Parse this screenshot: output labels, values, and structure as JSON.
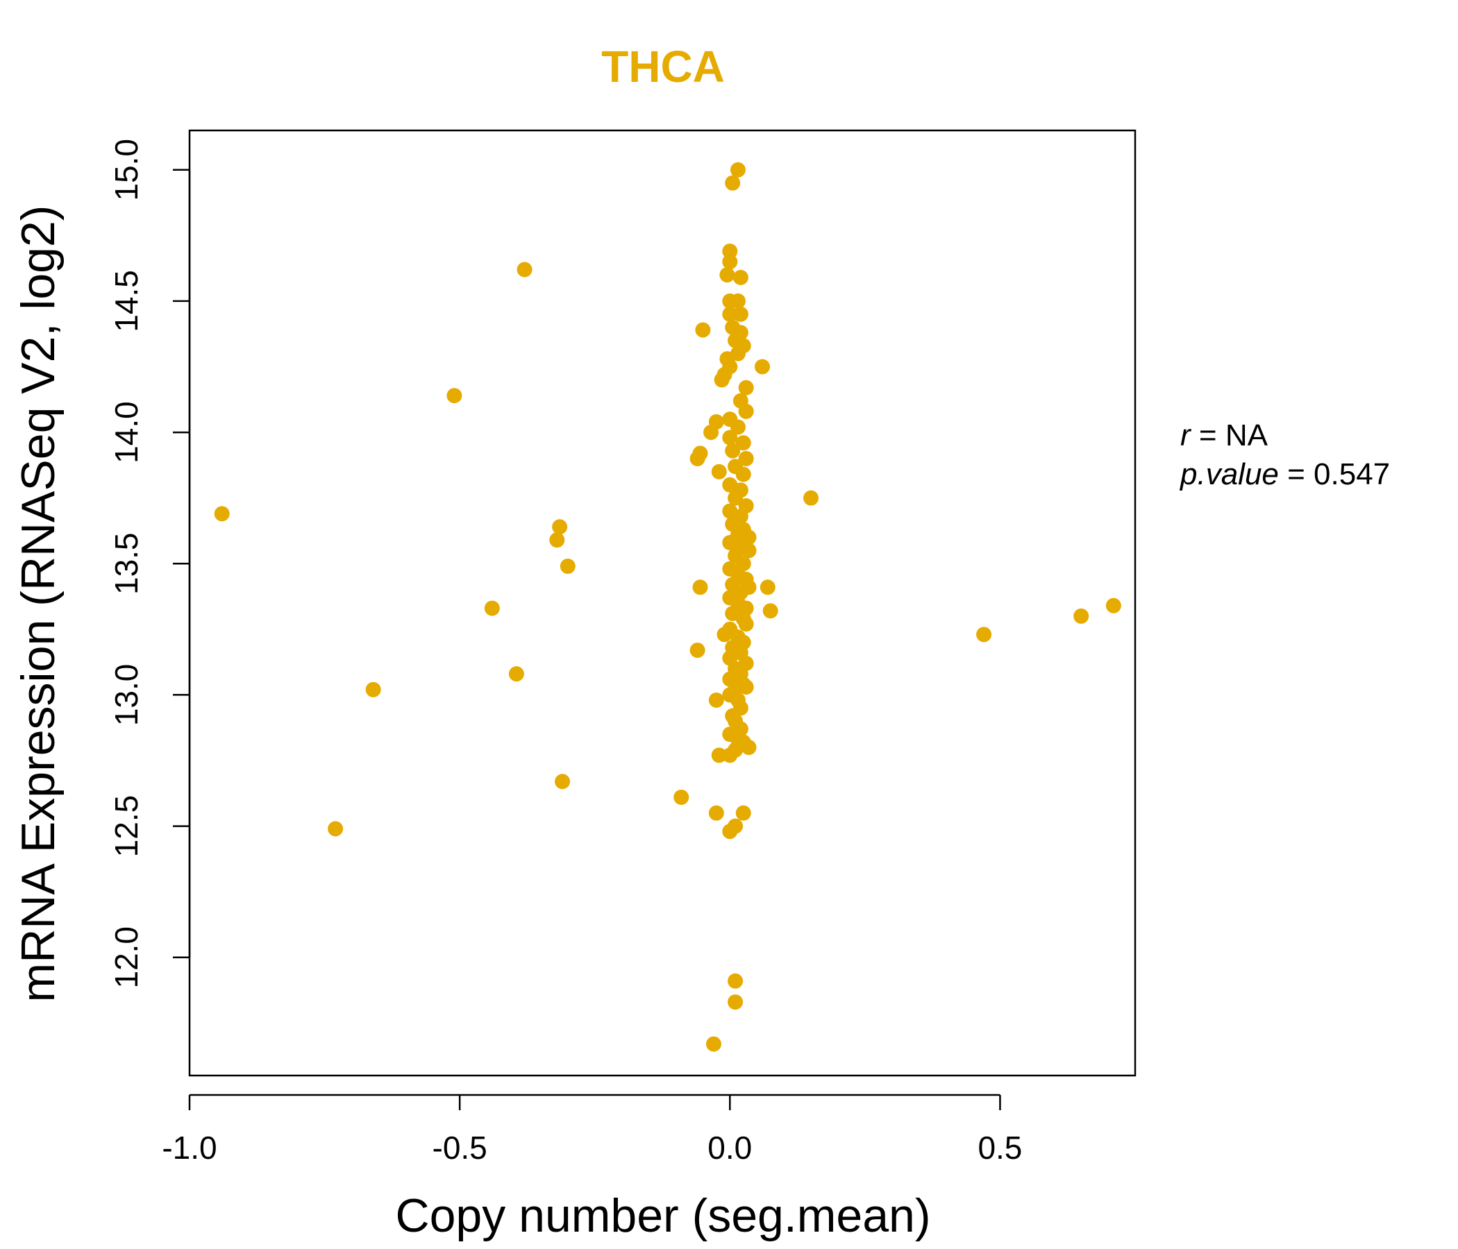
{
  "chart_data": {
    "type": "scatter",
    "title": "THCA",
    "xlabel": "Copy number (seg.mean)",
    "ylabel": "mRNA Expression (RNASeq V2, log2)",
    "xlim": [
      -1.0,
      0.75
    ],
    "ylim": [
      11.55,
      15.15
    ],
    "x_ticks": [
      "-1.0",
      "-0.5",
      "0.0",
      "0.5"
    ],
    "x_tick_values": [
      -1.0,
      -0.5,
      0.0,
      0.5
    ],
    "y_ticks": [
      "12.0",
      "12.5",
      "13.0",
      "13.5",
      "14.0",
      "14.5",
      "15.0"
    ],
    "y_tick_values": [
      12.0,
      12.5,
      13.0,
      13.5,
      14.0,
      14.5,
      15.0
    ],
    "grid": false,
    "color": "#E5AB00",
    "stats": {
      "r_label": "r",
      "r_value": "NA",
      "p_label": "p.value",
      "p_value": "0.547"
    },
    "points": [
      [
        -0.94,
        13.69
      ],
      [
        -0.73,
        12.49
      ],
      [
        -0.66,
        13.02
      ],
      [
        -0.51,
        14.14
      ],
      [
        -0.44,
        13.33
      ],
      [
        -0.395,
        13.08
      ],
      [
        -0.38,
        14.62
      ],
      [
        -0.315,
        13.64
      ],
      [
        -0.32,
        13.59
      ],
      [
        -0.3,
        13.49
      ],
      [
        -0.31,
        12.67
      ],
      [
        -0.09,
        12.61
      ],
      [
        -0.055,
        13.41
      ],
      [
        -0.06,
        13.17
      ],
      [
        -0.055,
        13.92
      ],
      [
        -0.06,
        13.9
      ],
      [
        -0.05,
        14.39
      ],
      [
        -0.035,
        14.0
      ],
      [
        -0.025,
        14.04
      ],
      [
        -0.025,
        12.55
      ],
      [
        -0.025,
        12.98
      ],
      [
        -0.02,
        12.77
      ],
      [
        -0.03,
        11.67
      ],
      [
        -0.02,
        13.85
      ],
      [
        -0.015,
        14.2
      ],
      [
        -0.01,
        14.22
      ],
      [
        -0.005,
        14.28
      ],
      [
        -0.01,
        13.23
      ],
      [
        0.0,
        12.77
      ],
      [
        0.0,
        12.48
      ],
      [
        0.01,
        12.5
      ],
      [
        0.025,
        12.55
      ],
      [
        0.01,
        11.91
      ],
      [
        0.01,
        11.83
      ],
      [
        0.015,
        15.0
      ],
      [
        0.005,
        14.95
      ],
      [
        0.0,
        14.69
      ],
      [
        0.0,
        14.65
      ],
      [
        -0.005,
        14.6
      ],
      [
        0.02,
        14.59
      ],
      [
        0.0,
        14.5
      ],
      [
        0.015,
        14.5
      ],
      [
        0.0,
        14.45
      ],
      [
        0.02,
        14.45
      ],
      [
        0.005,
        14.4
      ],
      [
        0.02,
        14.38
      ],
      [
        0.01,
        14.35
      ],
      [
        0.025,
        14.33
      ],
      [
        0.015,
        14.3
      ],
      [
        0.0,
        14.25
      ],
      [
        0.03,
        14.17
      ],
      [
        0.02,
        14.12
      ],
      [
        0.03,
        14.08
      ],
      [
        0.0,
        14.05
      ],
      [
        0.015,
        14.02
      ],
      [
        0.0,
        13.98
      ],
      [
        0.025,
        13.96
      ],
      [
        0.005,
        13.93
      ],
      [
        0.03,
        13.9
      ],
      [
        0.01,
        13.87
      ],
      [
        0.025,
        13.84
      ],
      [
        0.0,
        13.8
      ],
      [
        0.02,
        13.78
      ],
      [
        0.01,
        13.75
      ],
      [
        0.03,
        13.72
      ],
      [
        0.0,
        13.7
      ],
      [
        0.02,
        13.68
      ],
      [
        0.005,
        13.65
      ],
      [
        0.025,
        13.63
      ],
      [
        0.015,
        13.61
      ],
      [
        0.035,
        13.6
      ],
      [
        0.0,
        13.58
      ],
      [
        0.02,
        13.56
      ],
      [
        0.035,
        13.55
      ],
      [
        0.01,
        13.53
      ],
      [
        0.025,
        13.5
      ],
      [
        0.0,
        13.48
      ],
      [
        0.015,
        13.46
      ],
      [
        0.03,
        13.44
      ],
      [
        0.005,
        13.42
      ],
      [
        0.035,
        13.41
      ],
      [
        0.02,
        13.39
      ],
      [
        0.0,
        13.37
      ],
      [
        0.015,
        13.35
      ],
      [
        0.03,
        13.33
      ],
      [
        0.005,
        13.31
      ],
      [
        0.025,
        13.29
      ],
      [
        0.03,
        13.27
      ],
      [
        0.0,
        13.25
      ],
      [
        0.015,
        13.22
      ],
      [
        0.025,
        13.2
      ],
      [
        0.005,
        13.18
      ],
      [
        0.02,
        13.16
      ],
      [
        0.0,
        13.14
      ],
      [
        0.03,
        13.12
      ],
      [
        0.01,
        13.1
      ],
      [
        0.02,
        13.08
      ],
      [
        0.0,
        13.06
      ],
      [
        0.025,
        13.04
      ],
      [
        0.01,
        13.02
      ],
      [
        0.03,
        13.03
      ],
      [
        0.0,
        13.0
      ],
      [
        0.015,
        12.98
      ],
      [
        0.02,
        12.95
      ],
      [
        0.005,
        12.92
      ],
      [
        0.01,
        12.9
      ],
      [
        0.02,
        12.87
      ],
      [
        0.0,
        12.85
      ],
      [
        0.015,
        12.83
      ],
      [
        0.025,
        12.82
      ],
      [
        0.035,
        12.8
      ],
      [
        0.01,
        12.79
      ],
      [
        0.06,
        14.25
      ],
      [
        0.15,
        13.75
      ],
      [
        0.07,
        13.41
      ],
      [
        0.075,
        13.32
      ],
      [
        0.47,
        13.23
      ],
      [
        0.65,
        13.3
      ],
      [
        0.71,
        13.34
      ]
    ]
  }
}
